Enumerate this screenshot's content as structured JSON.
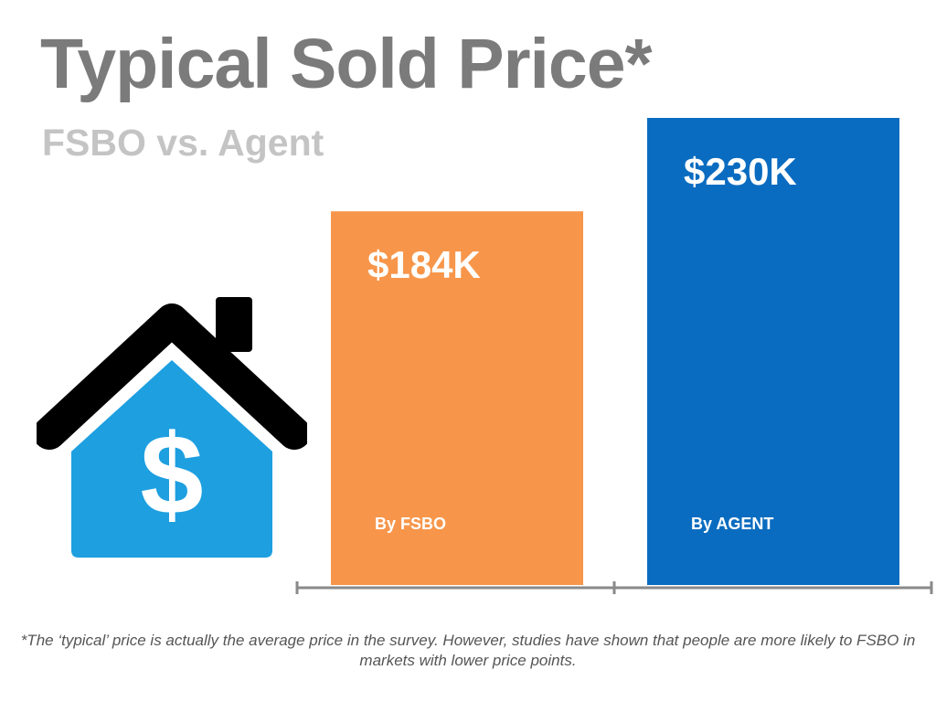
{
  "title": "Typical Sold Price*",
  "subtitle": "FSBO vs. Agent",
  "footnote": "*The ‘typical’ price is actually the average price in the survey. However, studies have shown that people are more likely to FSBO in markets with lower price points.",
  "icons": {
    "house": "house-dollar-icon"
  },
  "colors": {
    "title": "#7b7b7b",
    "subtitle": "#c4c4c4",
    "fsbo_bar": "#f7964a",
    "agent_bar": "#0a6cc0",
    "axis": "#8a8a8a",
    "house_body": "#1d9fe0",
    "house_roof": "#000000"
  },
  "chart_data": {
    "type": "bar",
    "categories": [
      "By FSBO",
      "By AGENT"
    ],
    "values": [
      184,
      230
    ],
    "value_labels": [
      "$184K",
      "$230K"
    ],
    "unit": "thousand USD",
    "ylim": [
      0,
      230
    ],
    "grid": false,
    "legend": "none"
  }
}
